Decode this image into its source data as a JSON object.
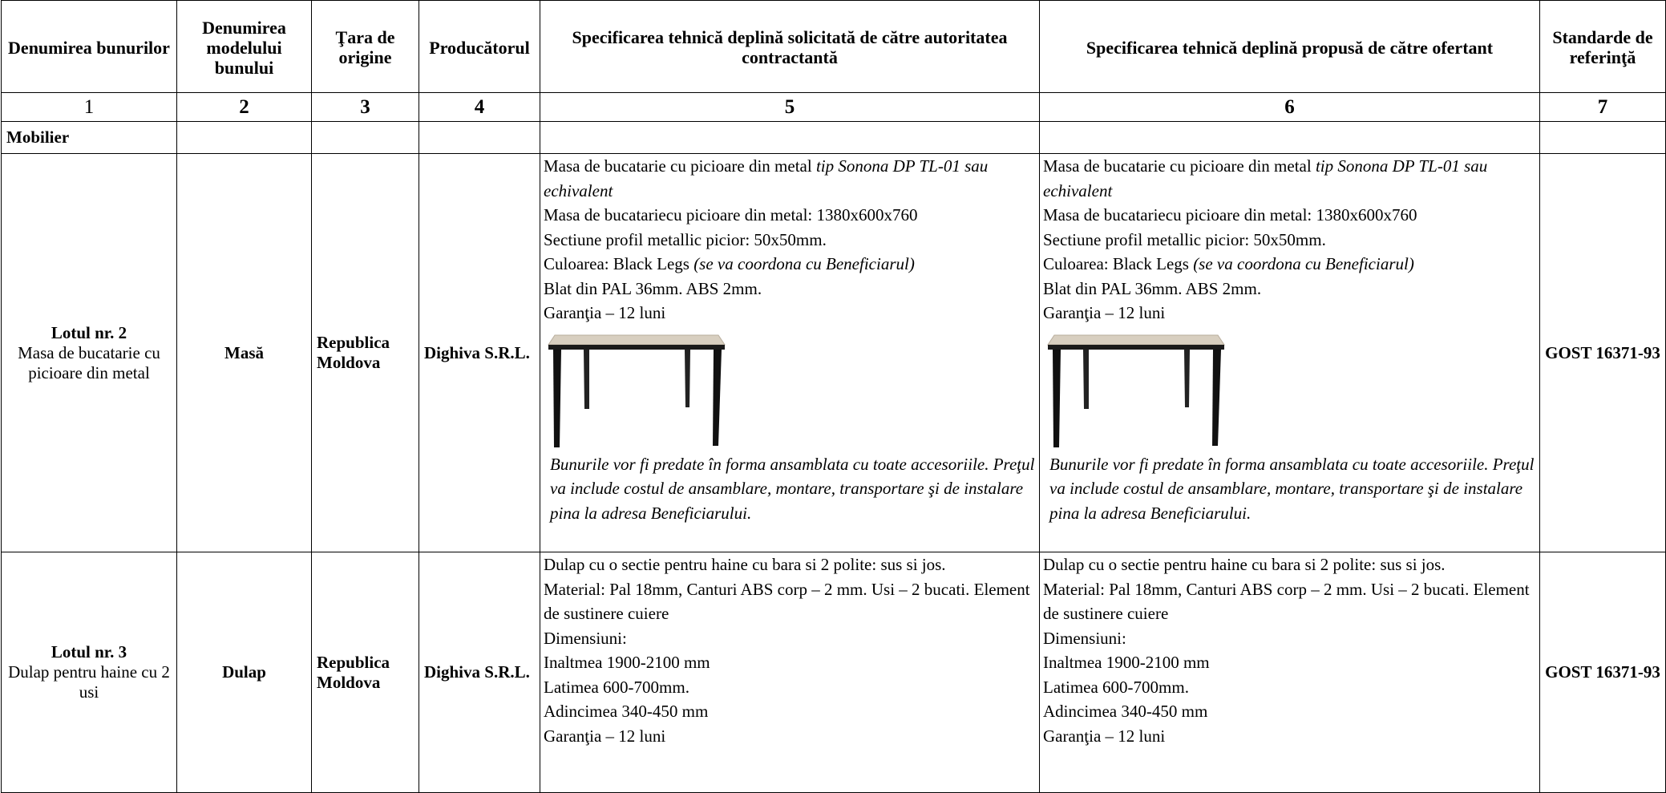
{
  "table": {
    "headers": [
      "Denumirea bunurilor",
      "Denumirea modelului bunului",
      "Ţara de origine",
      "Producătorul",
      "Specificarea tehnică deplină solicitată de către autoritatea contractantă",
      "Specificarea tehnică deplină propusă de către ofertant",
      "Standarde de referinţă"
    ],
    "numbers": [
      1,
      2,
      3,
      4,
      5,
      6,
      7
    ],
    "section": "Mobilier",
    "rows": [
      {
        "lot": "Lotul nr. 2",
        "item": "Masa de bucatarie cu picioare din metal",
        "model": "Masă",
        "country": "Republica Moldova",
        "producer": "Dighiva S.R.L.",
        "requested": {
          "lines": [
            {
              "text": "Masa de bucatarie cu picioare din metal ",
              "em": "tip Sonona DP TL-01 sau echivalent"
            },
            {
              "text": "Masa de bucatariecu picioare din metal: 1380x600x760"
            },
            {
              "text": "Sectiune profil metallic picior: 50x50mm."
            },
            {
              "text": "Culoarea: Black Legs ",
              "em": "(se va coordona cu Beneficiarul)"
            },
            {
              "text": "Blat din PAL 36mm. ABS 2mm."
            },
            {
              "text": "Garanţia – 12 luni"
            }
          ],
          "note": "Bunurile vor fi predate în forma ansamblata cu toate accesoriile. Preţul va include costul de ansamblare, montare, transportare şi de instalare pina la adresa Beneficiarului."
        },
        "offered": {
          "lines": [
            {
              "text": "Masa de bucatarie cu picioare din metal ",
              "em": "tip Sonona DP TL-01 sau echivalent"
            },
            {
              "text": "Masa de bucatariecu picioare din metal: 1380x600x760"
            },
            {
              "text": "Sectiune profil metallic picior: 50x50mm."
            },
            {
              "text": "Culoarea: Black Legs ",
              "em": "(se va coordona cu Beneficiarul)"
            },
            {
              "text": "Blat din PAL 36mm. ABS 2mm."
            },
            {
              "text": "Garanţia – 12 luni"
            }
          ],
          "note": "Bunurile vor fi predate în forma ansamblata cu toate accesoriile. Preţul va include costul de ansamblare, montare, transportare şi de instalare pina la adresa Beneficiarului."
        },
        "standard": "GOST 16371-93"
      },
      {
        "lot": "Lotul nr. 3",
        "item": "Dulap pentru haine cu 2 usi",
        "model": "Dulap",
        "country": "Republica Moldova",
        "producer": "Dighiva S.R.L.",
        "requested": {
          "lines": [
            {
              "text": "Dulap cu o sectie pentru haine cu bara si 2 polite: sus si jos."
            },
            {
              "text": "Material: Pal 18mm, Canturi ABS corp – 2 mm. Usi – 2 bucati. Element de sustinere cuiere"
            },
            {
              "text": "Dimensiuni:"
            },
            {
              "text": "Inaltmea 1900-2100 mm"
            },
            {
              "text": "Latimea 600-700mm."
            },
            {
              "text": "Adincimea 340-450 mm"
            },
            {
              "text": "Garanţia – 12 luni"
            }
          ]
        },
        "offered": {
          "lines": [
            {
              "text": "Dulap cu o sectie pentru haine cu bara si 2 polite: sus si jos."
            },
            {
              "text": "Material: Pal 18mm, Canturi ABS corp – 2 mm. Usi – 2 bucati. Element de sustinere cuiere"
            },
            {
              "text": "Dimensiuni:"
            },
            {
              "text": "Inaltmea 1900-2100 mm"
            },
            {
              "text": "Latimea 600-700mm."
            },
            {
              "text": "Adincimea 340-450 mm"
            },
            {
              "text": "Garanţia – 12 luni"
            }
          ]
        },
        "standard": "GOST 16371-93"
      }
    ]
  }
}
